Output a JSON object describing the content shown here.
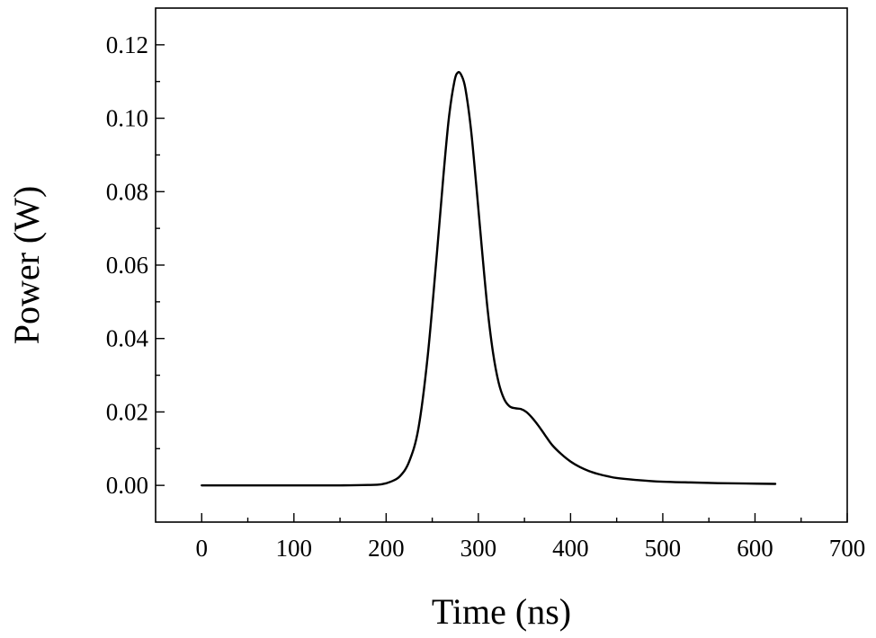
{
  "chart_data": {
    "type": "line",
    "title": "",
    "xlabel": "Time (ns)",
    "ylabel": "Power (W)",
    "xlim": [
      -50,
      700
    ],
    "ylim": [
      -0.01,
      0.13
    ],
    "x_ticks": [
      0,
      100,
      200,
      300,
      400,
      500,
      600,
      700
    ],
    "x_tick_labels": [
      "0",
      "100",
      "200",
      "300",
      "400",
      "500",
      "600",
      "700"
    ],
    "y_ticks": [
      0.0,
      0.02,
      0.04,
      0.06,
      0.08,
      0.1,
      0.12
    ],
    "y_tick_labels": [
      "0.00",
      "0.02",
      "0.04",
      "0.06",
      "0.08",
      "0.10",
      "0.12"
    ],
    "x_minor_step": 50,
    "y_minor_step": 0.01,
    "grid": false,
    "legend": "none",
    "series": [
      {
        "color": "#000000",
        "x": [
          0,
          50,
          100,
          150,
          180,
          195,
          205,
          215,
          225,
          235,
          245,
          255,
          262,
          268,
          274,
          278,
          282,
          286,
          292,
          298,
          304,
          310,
          316,
          322,
          328,
          334,
          340,
          346,
          352,
          358,
          365,
          372,
          380,
          390,
          400,
          410,
          420,
          430,
          440,
          450,
          470,
          500,
          530,
          560,
          590,
          622
        ],
        "y": [
          0,
          0,
          0,
          0,
          0.0001,
          0.0003,
          0.001,
          0.0025,
          0.0065,
          0.0155,
          0.035,
          0.063,
          0.084,
          0.1,
          0.11,
          0.1125,
          0.1115,
          0.108,
          0.097,
          0.081,
          0.064,
          0.048,
          0.036,
          0.028,
          0.0235,
          0.0215,
          0.021,
          0.0208,
          0.02,
          0.0185,
          0.0163,
          0.0138,
          0.011,
          0.0085,
          0.0065,
          0.005,
          0.0039,
          0.0031,
          0.0025,
          0.002,
          0.0015,
          0.001,
          0.0008,
          0.0006,
          0.0005,
          0.0004
        ]
      }
    ]
  }
}
